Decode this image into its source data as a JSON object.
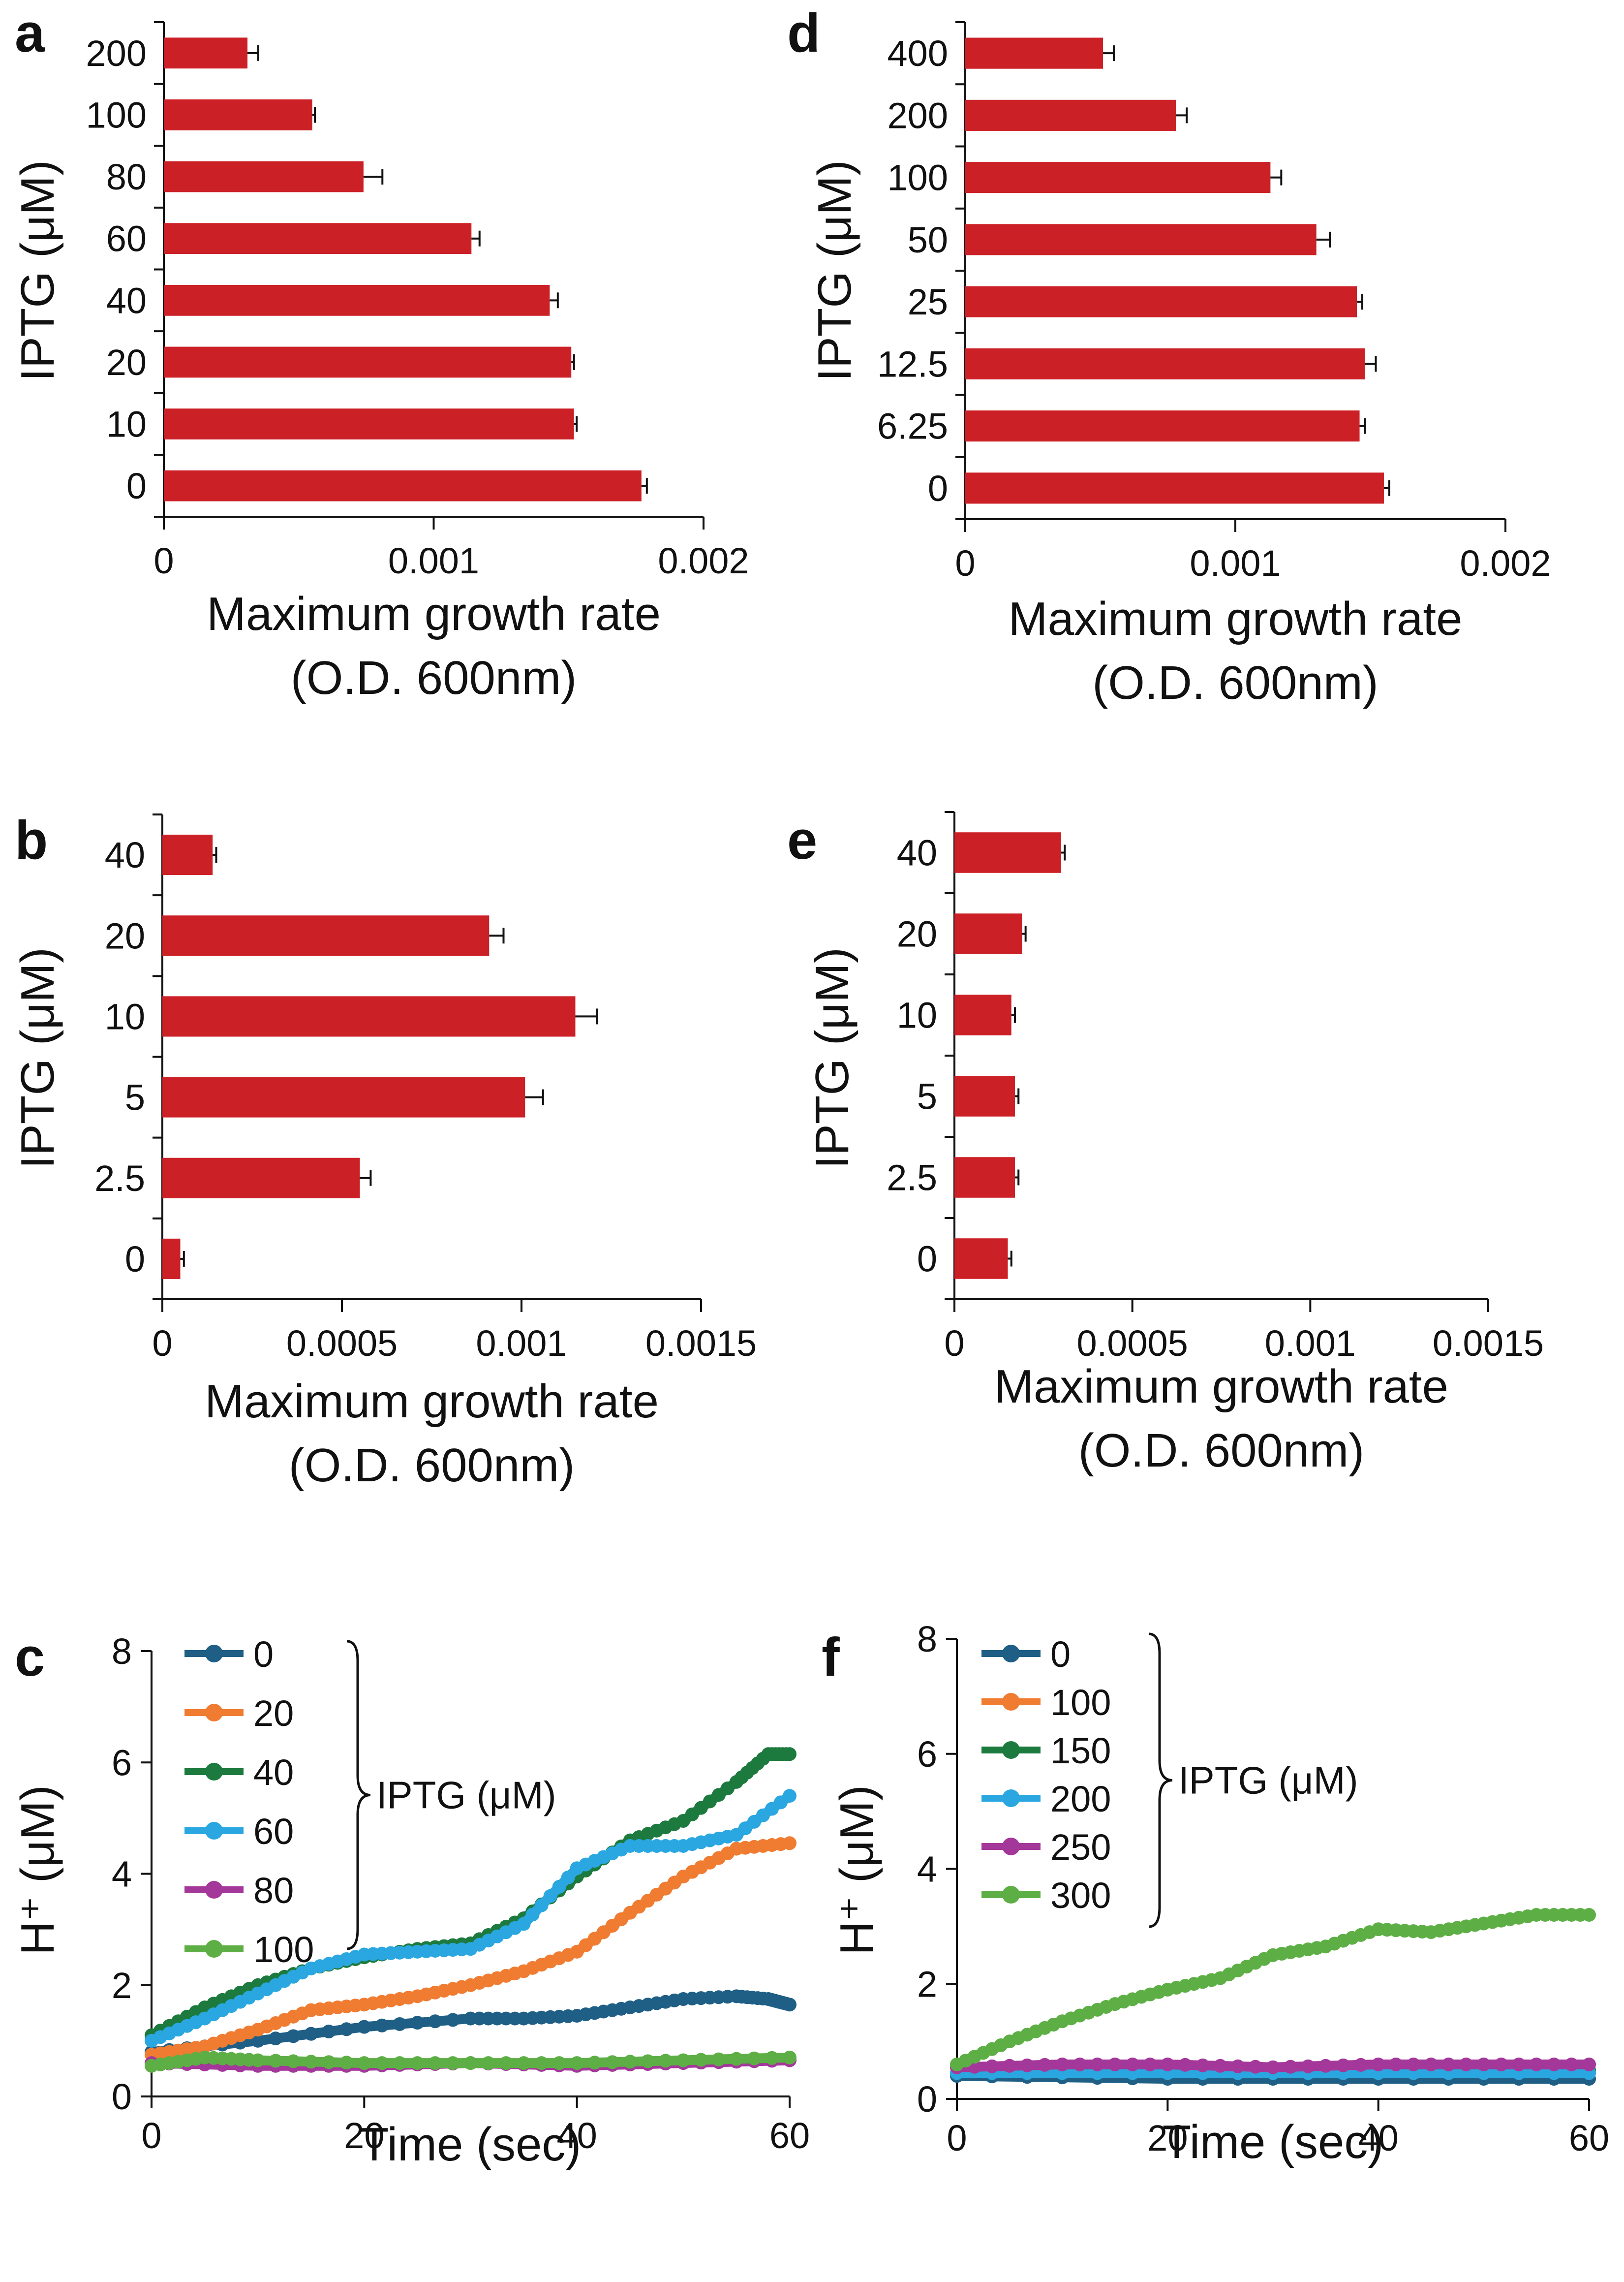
{
  "figure": {
    "colors": {
      "bar": "#cc2027",
      "axis": "#111111"
    }
  },
  "chart_data": [
    {
      "panel": "a",
      "type": "bar",
      "orientation": "horizontal",
      "ylabel": "IPTG (μM)",
      "xlabel_lines": [
        "Maximum growth rate",
        "(O.D. 600nm)"
      ],
      "categories": [
        "200",
        "100",
        "80",
        "60",
        "40",
        "20",
        "10",
        "0"
      ],
      "values": [
        0.00031,
        0.00055,
        0.00074,
        0.00114,
        0.00143,
        0.00151,
        0.00152,
        0.00177
      ],
      "errors": [
        4e-05,
        1e-05,
        7e-05,
        3e-05,
        3e-05,
        1e-05,
        1e-05,
        2e-05
      ],
      "xlim": [
        0,
        0.002
      ],
      "xticks": [
        0,
        0.001,
        0.002
      ],
      "xtick_labels": [
        "0",
        "0.001",
        "0.002"
      ]
    },
    {
      "panel": "b",
      "type": "bar",
      "orientation": "horizontal",
      "ylabel": "IPTG (μM)",
      "xlabel_lines": [
        "Maximum growth rate",
        "(O.D. 600nm)"
      ],
      "categories": [
        "40",
        "20",
        "10",
        "5",
        "2.5",
        "0"
      ],
      "values": [
        0.00014,
        0.00091,
        0.00115,
        0.00101,
        0.00055,
        5e-05
      ],
      "errors": [
        1e-05,
        4e-05,
        6e-05,
        5e-05,
        3e-05,
        1e-05
      ],
      "xlim": [
        0,
        0.0015
      ],
      "xticks": [
        0,
        0.0005,
        0.001,
        0.0015
      ],
      "xtick_labels": [
        "0",
        "0.0005",
        "0.001",
        "0.0015"
      ]
    },
    {
      "panel": "c",
      "type": "line",
      "ylabel": "H⁺ (μM)",
      "xlabel": "Time (sec)",
      "xlim": [
        0,
        60
      ],
      "ylim": [
        0,
        8
      ],
      "xticks": [
        0,
        20,
        40,
        60
      ],
      "yticks": [
        0,
        2,
        4,
        6,
        8
      ],
      "legend_title": "IPTG (μM)",
      "series": [
        {
          "name": "0",
          "color": "#1f5f86",
          "x": [
            0,
            10,
            20,
            30,
            35,
            40,
            45,
            50,
            55,
            58,
            60
          ],
          "y": [
            0.8,
            1.0,
            1.25,
            1.4,
            1.4,
            1.45,
            1.6,
            1.75,
            1.8,
            1.75,
            1.65
          ]
        },
        {
          "name": "20",
          "color": "#f07c32",
          "x": [
            0,
            5,
            10,
            15,
            20,
            25,
            30,
            35,
            40,
            45,
            50,
            55,
            60
          ],
          "y": [
            0.75,
            0.9,
            1.2,
            1.55,
            1.65,
            1.8,
            2.0,
            2.25,
            2.6,
            3.3,
            3.95,
            4.45,
            4.55
          ]
        },
        {
          "name": "40",
          "color": "#1d7a3e",
          "x": [
            0,
            5,
            10,
            15,
            20,
            25,
            30,
            35,
            40,
            45,
            50,
            55,
            58,
            60
          ],
          "y": [
            1.1,
            1.6,
            2.0,
            2.3,
            2.5,
            2.65,
            2.75,
            3.2,
            3.95,
            4.6,
            4.95,
            5.65,
            6.15,
            6.15
          ]
        },
        {
          "name": "60",
          "color": "#2aa7e0",
          "x": [
            0,
            5,
            10,
            15,
            20,
            25,
            30,
            35,
            40,
            45,
            50,
            55,
            60
          ],
          "y": [
            1.0,
            1.4,
            1.85,
            2.3,
            2.55,
            2.6,
            2.65,
            3.1,
            4.1,
            4.5,
            4.5,
            4.7,
            5.4
          ]
        },
        {
          "name": "80",
          "color": "#a4379a",
          "x": [
            0,
            10,
            20,
            30,
            40,
            50,
            60
          ],
          "y": [
            0.6,
            0.55,
            0.55,
            0.6,
            0.55,
            0.6,
            0.65
          ]
        },
        {
          "name": "100",
          "color": "#5daf45",
          "x": [
            0,
            5,
            10,
            20,
            30,
            40,
            50,
            60
          ],
          "y": [
            0.55,
            0.7,
            0.65,
            0.6,
            0.6,
            0.6,
            0.65,
            0.7
          ]
        }
      ]
    },
    {
      "panel": "d",
      "type": "bar",
      "orientation": "horizontal",
      "ylabel": "IPTG (μM)",
      "xlabel_lines": [
        "Maximum growth rate",
        "(O.D. 600nm)"
      ],
      "categories": [
        "400",
        "200",
        "100",
        "50",
        "25",
        "12.5",
        "6.25",
        "0"
      ],
      "values": [
        0.00051,
        0.00078,
        0.00113,
        0.0013,
        0.00145,
        0.00148,
        0.00146,
        0.00155
      ],
      "errors": [
        4e-05,
        4e-05,
        4e-05,
        5e-05,
        2e-05,
        4e-05,
        2e-05,
        2e-05
      ],
      "xlim": [
        0,
        0.002
      ],
      "xticks": [
        0,
        0.001,
        0.002
      ],
      "xtick_labels": [
        "0",
        "0.001",
        "0.002"
      ]
    },
    {
      "panel": "e",
      "type": "bar",
      "orientation": "horizontal",
      "ylabel": "IPTG (μM)",
      "xlabel_lines": [
        "Maximum growth rate",
        "(O.D. 600nm)"
      ],
      "categories": [
        "40",
        "20",
        "10",
        "5",
        "2.5",
        "0"
      ],
      "values": [
        0.0003,
        0.00019,
        0.00016,
        0.00017,
        0.00017,
        0.00015
      ],
      "errors": [
        1e-05,
        1e-05,
        1e-05,
        1e-05,
        1e-05,
        1e-05
      ],
      "xlim": [
        0,
        0.0015
      ],
      "xticks": [
        0,
        0.0005,
        0.001,
        0.0015
      ],
      "xtick_labels": [
        "0",
        "0.0005",
        "0.001",
        "0.0015"
      ]
    },
    {
      "panel": "f",
      "type": "line",
      "ylabel": "H⁺ (μM)",
      "xlabel": "Time (sec)",
      "xlim": [
        0,
        60
      ],
      "ylim": [
        0,
        8
      ],
      "xticks": [
        0,
        20,
        40,
        60
      ],
      "yticks": [
        0,
        2,
        4,
        6,
        8
      ],
      "legend_title": "IPTG (μM)",
      "series": [
        {
          "name": "0",
          "color": "#1f5f86",
          "x": [
            0,
            20,
            40,
            60
          ],
          "y": [
            0.4,
            0.35,
            0.35,
            0.35
          ]
        },
        {
          "name": "100",
          "color": "#f07c32",
          "x": [
            0,
            20,
            40,
            60
          ],
          "y": [
            0.45,
            0.45,
            0.45,
            0.45
          ]
        },
        {
          "name": "150",
          "color": "#1d7a3e",
          "x": [
            0,
            20,
            40,
            60
          ],
          "y": [
            0.45,
            0.45,
            0.45,
            0.5
          ]
        },
        {
          "name": "200",
          "color": "#2aa7e0",
          "x": [
            0,
            20,
            40,
            60
          ],
          "y": [
            0.45,
            0.45,
            0.45,
            0.45
          ]
        },
        {
          "name": "250",
          "color": "#a4379a",
          "x": [
            0,
            10,
            20,
            30,
            40,
            50,
            60
          ],
          "y": [
            0.55,
            0.6,
            0.6,
            0.55,
            0.6,
            0.6,
            0.6
          ]
        },
        {
          "name": "300",
          "color": "#5daf45",
          "x": [
            0,
            5,
            10,
            15,
            20,
            25,
            30,
            35,
            40,
            45,
            50,
            55,
            60
          ],
          "y": [
            0.6,
            1.0,
            1.35,
            1.65,
            1.9,
            2.1,
            2.5,
            2.65,
            2.95,
            2.9,
            3.05,
            3.2,
            3.2
          ]
        }
      ]
    }
  ]
}
